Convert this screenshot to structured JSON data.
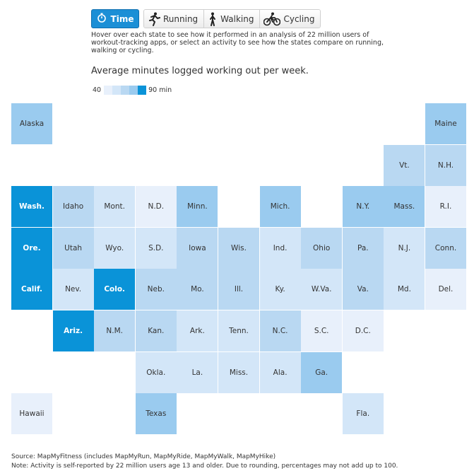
{
  "tabs": {
    "active": {
      "label": "Time",
      "icon": "stopwatch-icon"
    },
    "items": [
      {
        "key": "running",
        "label": "Running",
        "icon": "runner-icon"
      },
      {
        "key": "walking",
        "label": "Walking",
        "icon": "walker-icon"
      },
      {
        "key": "cycling",
        "label": "Cycling",
        "icon": "cyclist-icon"
      }
    ]
  },
  "description": "Hover over each state to see how it performed in an analysis of 22 million users of workout-tracking apps, or select an activity to see how the states compare on running, walking or cycling.",
  "subtitle": "Average minutes logged working out per week.",
  "legend": {
    "min_label": "40",
    "max_label": "90 min",
    "colors": [
      "#e8f0fb",
      "#d3e6f8",
      "#b9d8f2",
      "#9acbef",
      "#0a93d8"
    ]
  },
  "states": [
    {
      "label": "Alaska",
      "col": 0,
      "row": 0,
      "level": 3
    },
    {
      "label": "Maine",
      "col": 10,
      "row": 0,
      "level": 3
    },
    {
      "label": "Vt.",
      "col": 9,
      "row": 1,
      "level": 2
    },
    {
      "label": "N.H.",
      "col": 10,
      "row": 1,
      "level": 2
    },
    {
      "label": "Wash.",
      "col": 0,
      "row": 2,
      "level": 4
    },
    {
      "label": "Idaho",
      "col": 1,
      "row": 2,
      "level": 2
    },
    {
      "label": "Mont.",
      "col": 2,
      "row": 2,
      "level": 1
    },
    {
      "label": "N.D.",
      "col": 3,
      "row": 2,
      "level": 0
    },
    {
      "label": "Minn.",
      "col": 4,
      "row": 2,
      "level": 3
    },
    {
      "label": "Mich.",
      "col": 6,
      "row": 2,
      "level": 3
    },
    {
      "label": "N.Y.",
      "col": 8,
      "row": 2,
      "level": 3
    },
    {
      "label": "Mass.",
      "col": 9,
      "row": 2,
      "level": 3
    },
    {
      "label": "R.I.",
      "col": 10,
      "row": 2,
      "level": 0
    },
    {
      "label": "Ore.",
      "col": 0,
      "row": 3,
      "level": 4
    },
    {
      "label": "Utah",
      "col": 1,
      "row": 3,
      "level": 2
    },
    {
      "label": "Wyo.",
      "col": 2,
      "row": 3,
      "level": 1
    },
    {
      "label": "S.D.",
      "col": 3,
      "row": 3,
      "level": 1
    },
    {
      "label": "Iowa",
      "col": 4,
      "row": 3,
      "level": 2
    },
    {
      "label": "Wis.",
      "col": 5,
      "row": 3,
      "level": 2
    },
    {
      "label": "Ind.",
      "col": 6,
      "row": 3,
      "level": 1
    },
    {
      "label": "Ohio",
      "col": 7,
      "row": 3,
      "level": 2
    },
    {
      "label": "Pa.",
      "col": 8,
      "row": 3,
      "level": 2
    },
    {
      "label": "N.J.",
      "col": 9,
      "row": 3,
      "level": 1
    },
    {
      "label": "Conn.",
      "col": 10,
      "row": 3,
      "level": 2
    },
    {
      "label": "Calif.",
      "col": 0,
      "row": 4,
      "level": 4
    },
    {
      "label": "Nev.",
      "col": 1,
      "row": 4,
      "level": 1
    },
    {
      "label": "Colo.",
      "col": 2,
      "row": 4,
      "level": 4
    },
    {
      "label": "Neb.",
      "col": 3,
      "row": 4,
      "level": 2
    },
    {
      "label": "Mo.",
      "col": 4,
      "row": 4,
      "level": 2
    },
    {
      "label": "Ill.",
      "col": 5,
      "row": 4,
      "level": 2
    },
    {
      "label": "Ky.",
      "col": 6,
      "row": 4,
      "level": 1
    },
    {
      "label": "W.Va.",
      "col": 7,
      "row": 4,
      "level": 1
    },
    {
      "label": "Va.",
      "col": 8,
      "row": 4,
      "level": 2
    },
    {
      "label": "Md.",
      "col": 9,
      "row": 4,
      "level": 1
    },
    {
      "label": "Del.",
      "col": 10,
      "row": 4,
      "level": 0
    },
    {
      "label": "Ariz.",
      "col": 1,
      "row": 5,
      "level": 4
    },
    {
      "label": "N.M.",
      "col": 2,
      "row": 5,
      "level": 2
    },
    {
      "label": "Kan.",
      "col": 3,
      "row": 5,
      "level": 2
    },
    {
      "label": "Ark.",
      "col": 4,
      "row": 5,
      "level": 1
    },
    {
      "label": "Tenn.",
      "col": 5,
      "row": 5,
      "level": 1
    },
    {
      "label": "N.C.",
      "col": 6,
      "row": 5,
      "level": 2
    },
    {
      "label": "S.C.",
      "col": 7,
      "row": 5,
      "level": 0
    },
    {
      "label": "D.C.",
      "col": 8,
      "row": 5,
      "level": 0
    },
    {
      "label": "Okla.",
      "col": 3,
      "row": 6,
      "level": 1
    },
    {
      "label": "La.",
      "col": 4,
      "row": 6,
      "level": 1
    },
    {
      "label": "Miss.",
      "col": 5,
      "row": 6,
      "level": 1
    },
    {
      "label": "Ala.",
      "col": 6,
      "row": 6,
      "level": 1
    },
    {
      "label": "Ga.",
      "col": 7,
      "row": 6,
      "level": 3
    },
    {
      "label": "Hawaii",
      "col": 0,
      "row": 7,
      "level": 0
    },
    {
      "label": "Texas",
      "col": 3,
      "row": 7,
      "level": 3
    },
    {
      "label": "Fla.",
      "col": 8,
      "row": 7,
      "level": 1
    }
  ],
  "source": {
    "line1": "Source: MapMyFitness (includes MapMyRun, MapMyRide, MapMyWalk, MapMyHike)",
    "line2": "Note: Activity is self-reported by 22 million users age 13 and older. Due to rounding, percentages may not add up to 100."
  }
}
